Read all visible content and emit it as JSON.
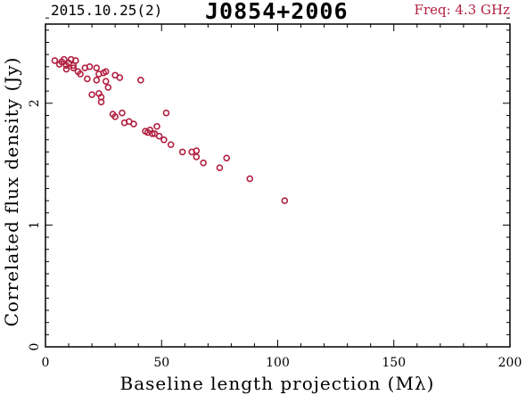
{
  "header": {
    "date": "2015.10.25(2)",
    "source": "J0854+2006",
    "freq": "Freq: 4.3 GHz"
  },
  "colors": {
    "points": "#b22040",
    "freq_text": "#b22040",
    "axes": "#000000"
  },
  "chart_data": {
    "type": "scatter",
    "title": "J0854+2006",
    "xlabel": "Baseline length projection (Mλ)",
    "ylabel": "Correlated flux density (Jy)",
    "xlim": [
      0,
      200
    ],
    "ylim": [
      0,
      2.65
    ],
    "xticks": [
      0,
      50,
      100,
      150,
      200
    ],
    "xtick_labels": [
      "0",
      "50",
      "100",
      "150",
      "200"
    ],
    "yticks": [
      0,
      1,
      2
    ],
    "ytick_labels": [
      "0",
      "1",
      "2"
    ],
    "grid": false,
    "marker": "open-circle",
    "points": [
      [
        4,
        2.35
      ],
      [
        6,
        2.32
      ],
      [
        7,
        2.34
      ],
      [
        8,
        2.36
      ],
      [
        9,
        2.31
      ],
      [
        9,
        2.28
      ],
      [
        10,
        2.33
      ],
      [
        11,
        2.36
      ],
      [
        12,
        2.31
      ],
      [
        12,
        2.29
      ],
      [
        13,
        2.35
      ],
      [
        14,
        2.26
      ],
      [
        15,
        2.24
      ],
      [
        17,
        2.29
      ],
      [
        18,
        2.2
      ],
      [
        19,
        2.3
      ],
      [
        20,
        2.07
      ],
      [
        22,
        2.29
      ],
      [
        22,
        2.19
      ],
      [
        23,
        2.24
      ],
      [
        23,
        2.08
      ],
      [
        24,
        2.05
      ],
      [
        24,
        2.01
      ],
      [
        25,
        2.25
      ],
      [
        26,
        2.26
      ],
      [
        26,
        2.18
      ],
      [
        27,
        2.13
      ],
      [
        29,
        1.91
      ],
      [
        30,
        2.23
      ],
      [
        30,
        1.89
      ],
      [
        32,
        2.21
      ],
      [
        33,
        1.92
      ],
      [
        34,
        1.84
      ],
      [
        36,
        1.85
      ],
      [
        38,
        1.83
      ],
      [
        41,
        2.19
      ],
      [
        43,
        1.77
      ],
      [
        44,
        1.76
      ],
      [
        45,
        1.78
      ],
      [
        46,
        1.75
      ],
      [
        47,
        1.75
      ],
      [
        48,
        1.81
      ],
      [
        49,
        1.73
      ],
      [
        51,
        1.7
      ],
      [
        52,
        1.92
      ],
      [
        54,
        1.66
      ],
      [
        59,
        1.6
      ],
      [
        63,
        1.6
      ],
      [
        65,
        1.61
      ],
      [
        65,
        1.56
      ],
      [
        68,
        1.51
      ],
      [
        75,
        1.47
      ],
      [
        78,
        1.55
      ],
      [
        88,
        1.38
      ],
      [
        103,
        1.2
      ]
    ]
  }
}
